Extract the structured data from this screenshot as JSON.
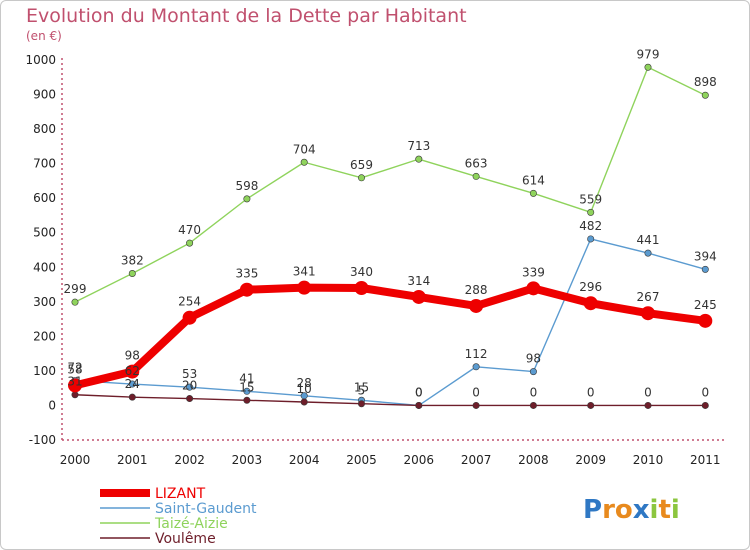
{
  "chart_data": {
    "type": "line",
    "title": "Evolution du Montant de la Dette par Habitant",
    "subtitle": "(en €)",
    "x": [
      "2000",
      "2001",
      "2002",
      "2003",
      "2004",
      "2005",
      "2006",
      "2007",
      "2008",
      "2009",
      "2010",
      "2011"
    ],
    "ylim": [
      -100,
      1000
    ],
    "yticks": [
      -100,
      0,
      100,
      200,
      300,
      400,
      500,
      600,
      700,
      800,
      900,
      1000
    ],
    "grid": false,
    "legend_position": "bottom-left",
    "series": [
      {
        "name": "Taizé-Aizie",
        "color": "#8fd35c",
        "values": [
          299,
          382,
          470,
          598,
          704,
          659,
          713,
          663,
          614,
          559,
          979,
          898
        ]
      },
      {
        "name": "Saint-Gaudent",
        "color": "#5b9bd0",
        "values": [
          72,
          62,
          53,
          41,
          28,
          15,
          0,
          112,
          98,
          482,
          441,
          394
        ]
      },
      {
        "name": "Voulême",
        "color": "#6e1e2a",
        "values": [
          31,
          24,
          20,
          15,
          10,
          5,
          0,
          0,
          0,
          0,
          0,
          0
        ]
      },
      {
        "name": "LIZANT",
        "color": "#ee0000",
        "values": [
          58,
          98,
          254,
          335,
          341,
          340,
          314,
          288,
          339,
          296,
          267,
          245
        ]
      }
    ],
    "legend_order": [
      3,
      1,
      0,
      2
    ]
  },
  "logo": {
    "text": "Proxiti",
    "letters": [
      "P",
      "r",
      "o",
      "x",
      "i",
      "t",
      "i"
    ],
    "colors": [
      "#2f78c4",
      "#e88a1e",
      "#e88a1e",
      "#2f78c4",
      "#8cc63f",
      "#e88a1e",
      "#8cc63f"
    ]
  }
}
